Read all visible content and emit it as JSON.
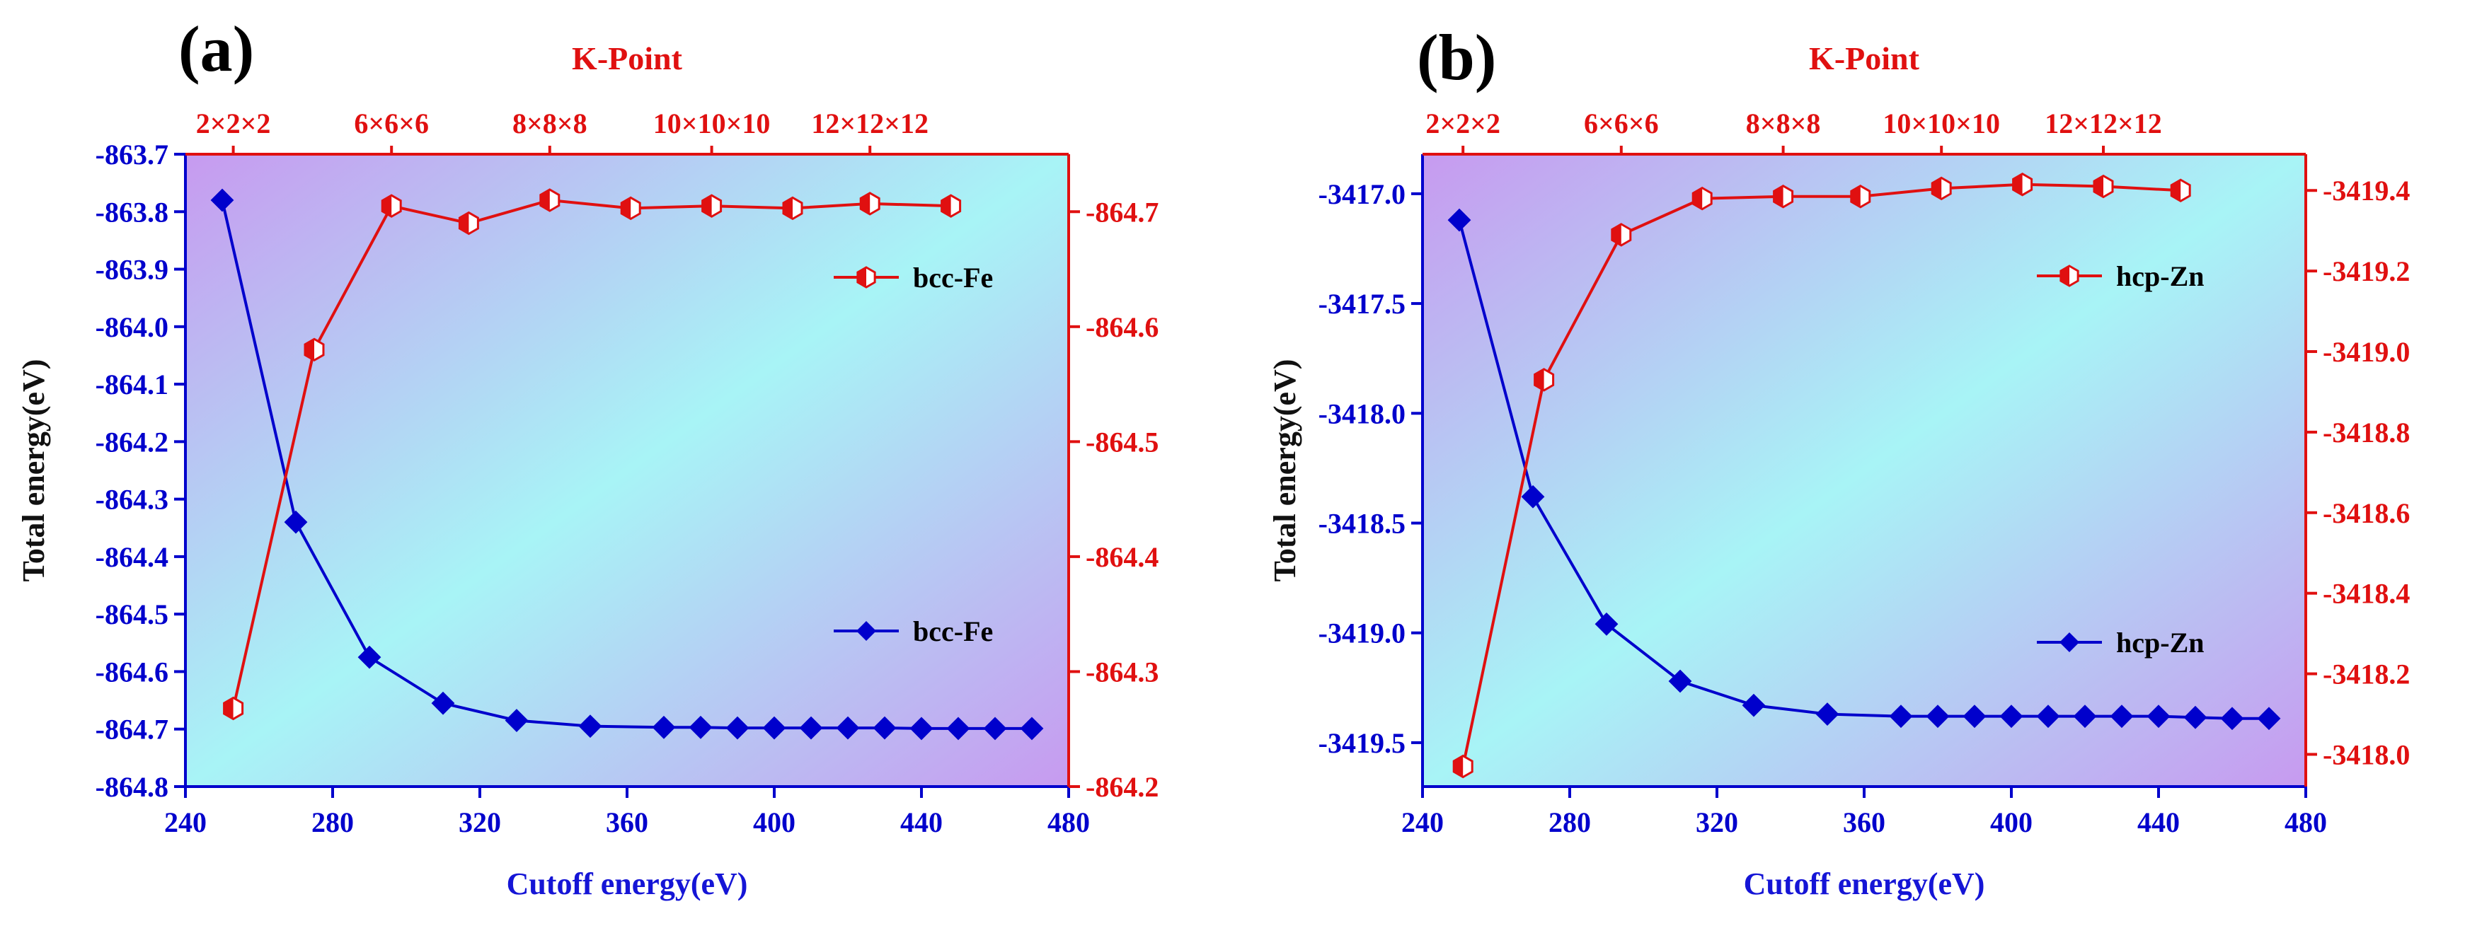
{
  "colors": {
    "primary_series": "#0000cc",
    "secondary_series": "#e01010",
    "plot_bg_start": "#c79af0",
    "plot_bg_mid": "#a8f4f6",
    "plot_bg_end": "#c79af0"
  },
  "chart_data": [
    {
      "type": "line",
      "panel_label": "(a)",
      "xlabel": "Cutoff energy(eV)",
      "ylabel": "Total energy(eV)",
      "top_axis_title": "K-Point",
      "xlim": [
        240,
        480
      ],
      "x_ticks": [
        "240",
        "280",
        "320",
        "360",
        "400",
        "440",
        "480"
      ],
      "ylim": [
        -864.8,
        -863.7
      ],
      "y_ticks": [
        "-863.7",
        "-863.8",
        "-863.9",
        "-864.0",
        "-864.1",
        "-864.2",
        "-864.3",
        "-864.4",
        "-864.5",
        "-864.6",
        "-864.7",
        "-864.8"
      ],
      "y2lim": [
        -864.2,
        -864.75
      ],
      "y2_ticks": [
        "-864.7",
        "-864.6",
        "-864.5",
        "-864.4",
        "-864.3",
        "-864.2"
      ],
      "top_ticks": [
        "2×2×2",
        "6×6×6",
        "8×8×8",
        "10×10×10",
        "12×12×12"
      ],
      "series": [
        {
          "name": "bcc-Fe",
          "axis": "left",
          "marker": "diamond",
          "x": [
            250,
            270,
            290,
            310,
            330,
            350,
            370,
            380,
            390,
            400,
            410,
            420,
            430,
            440,
            450,
            460,
            470
          ],
          "values": [
            -863.78,
            -864.34,
            -864.575,
            -864.655,
            -864.685,
            -864.695,
            -864.697,
            -864.697,
            -864.698,
            -864.698,
            -864.698,
            -864.698,
            -864.698,
            -864.699,
            -864.699,
            -864.699,
            -864.699
          ]
        },
        {
          "name": "bcc-Fe",
          "axis": "right",
          "marker": "half-filled-hexagon",
          "x": [
            253,
            275,
            296,
            317,
            339,
            361,
            383,
            405,
            426,
            448
          ],
          "values": [
            -864.268,
            -864.58,
            -864.705,
            -864.69,
            -864.71,
            -864.703,
            -864.705,
            -864.703,
            -864.707,
            -864.705
          ]
        }
      ]
    },
    {
      "type": "line",
      "panel_label": "(b)",
      "xlabel": "Cutoff energy(eV)",
      "ylabel": "Total energy(eV)",
      "top_axis_title": "K-Point",
      "xlim": [
        240,
        480
      ],
      "x_ticks": [
        "240",
        "280",
        "320",
        "360",
        "400",
        "440",
        "480"
      ],
      "ylim": [
        -3419.7,
        -3416.82
      ],
      "y_ticks": [
        "-3417.0",
        "-3417.5",
        "-3418.0",
        "-3418.5",
        "-3419.0",
        "-3419.5"
      ],
      "y2lim": [
        -3417.92,
        -3419.49
      ],
      "y2_ticks": [
        "-3419.4",
        "-3419.2",
        "-3419.0",
        "-3418.8",
        "-3418.6",
        "-3418.4",
        "-3418.2",
        "-3418.0"
      ],
      "top_ticks": [
        "2×2×2",
        "6×6×6",
        "8×8×8",
        "10×10×10",
        "12×12×12"
      ],
      "series": [
        {
          "name": "hcp-Zn",
          "axis": "left",
          "marker": "diamond",
          "x": [
            250,
            270,
            290,
            310,
            330,
            350,
            370,
            380,
            390,
            400,
            410,
            420,
            430,
            440,
            450,
            460,
            470
          ],
          "values": [
            -3417.12,
            -3418.38,
            -3418.96,
            -3419.22,
            -3419.33,
            -3419.37,
            -3419.38,
            -3419.38,
            -3419.38,
            -3419.38,
            -3419.38,
            -3419.38,
            -3419.38,
            -3419.38,
            -3419.385,
            -3419.39,
            -3419.39
          ]
        },
        {
          "name": "hcp-Zn",
          "axis": "right",
          "marker": "half-filled-hexagon",
          "x": [
            251,
            273,
            294,
            316,
            338,
            359,
            381,
            403,
            425,
            446
          ],
          "values": [
            -3417.97,
            -3418.93,
            -3419.29,
            -3419.38,
            -3419.385,
            -3419.385,
            -3419.405,
            -3419.415,
            -3419.41,
            -3419.4
          ]
        }
      ]
    }
  ]
}
